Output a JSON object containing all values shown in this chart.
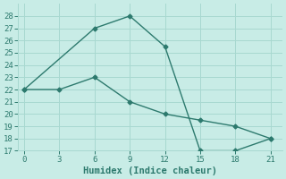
{
  "line1_x": [
    0,
    6,
    9,
    12,
    15,
    18,
    21
  ],
  "line1_y": [
    22,
    27,
    28,
    25.5,
    17,
    17,
    18
  ],
  "line2_x": [
    0,
    3,
    6,
    9,
    12,
    15,
    18,
    21
  ],
  "line2_y": [
    22,
    22,
    23,
    21,
    20,
    19.5,
    19,
    18
  ],
  "line_color": "#2d7a6e",
  "bg_color": "#c8ece6",
  "grid_color": "#a8d8d0",
  "xlabel": "Humidex (Indice chaleur)",
  "xlim": [
    -0.5,
    22
  ],
  "ylim": [
    17,
    29
  ],
  "xticks": [
    0,
    3,
    6,
    9,
    12,
    15,
    18,
    21
  ],
  "yticks": [
    17,
    18,
    19,
    20,
    21,
    22,
    23,
    24,
    25,
    26,
    27,
    28
  ],
  "marker": "D",
  "markersize": 2.5,
  "tick_fontsize": 6.5,
  "xlabel_fontsize": 7.5
}
